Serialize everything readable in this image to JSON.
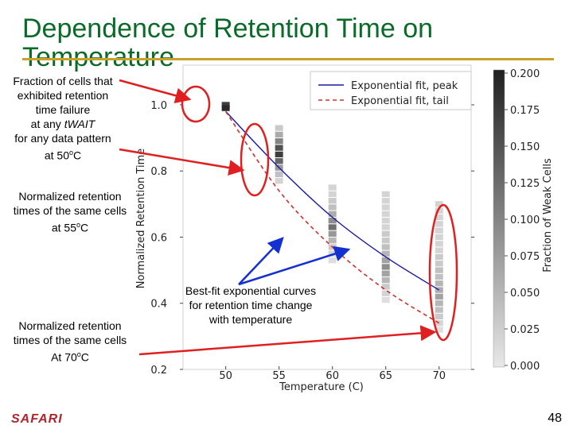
{
  "slide": {
    "title": "Dependence of Retention Time on Temperature",
    "logo": "SAFARI",
    "page_number": "48"
  },
  "annotations": {
    "fraction": {
      "line1": "Fraction of cells that",
      "line2": "exhibited retention",
      "line3": "time failure",
      "line4_pre": "at any ",
      "line4_em": "tWAIT",
      "line5": "for any data pattern",
      "line6_pre": "at 50",
      "line6_sup": "o",
      "line6_post": "C"
    },
    "at55": {
      "line1": "Normalized retention",
      "line2": "times of the same cells",
      "line3_pre": "at 55",
      "line3_sup": "o",
      "line3_post": "C"
    },
    "at70": {
      "line1": "Normalized retention",
      "line2": "times of the same cells",
      "line3_pre": "At 70",
      "line3_sup": "o",
      "line3_post": "C"
    },
    "bestfit": {
      "line1": "Best-fit exponential curves",
      "line2": "for retention time change",
      "line3": "with temperature"
    }
  },
  "chart_data": {
    "type": "heatmap",
    "xlabel": "Temperature (C)",
    "ylabel": "Normalized Retention Time",
    "xticks": [
      50,
      55,
      60,
      65,
      70
    ],
    "yticks": [
      0.2,
      0.4,
      0.6,
      0.8,
      1.0
    ],
    "xlim": [
      46,
      73
    ],
    "ylim": [
      0.2,
      1.12
    ],
    "legend_placement": "top-right",
    "series": [
      {
        "name": "Exponential fit, peak",
        "style": "solid",
        "color": "#1a1aa0",
        "x": [
          50,
          55,
          60,
          65,
          70
        ],
        "y": [
          0.98,
          0.81,
          0.66,
          0.54,
          0.44
        ]
      },
      {
        "name": "Exponential fit, tail",
        "style": "dashed",
        "color": "#d03030",
        "x": [
          50,
          55,
          60,
          65,
          70
        ],
        "y": [
          0.98,
          0.74,
          0.57,
          0.44,
          0.34
        ]
      }
    ],
    "heat_columns": [
      {
        "x": 50,
        "cells": [
          {
            "y": 1.0,
            "v": 0.17
          },
          {
            "y": 0.99,
            "v": 0.19
          }
        ]
      },
      {
        "x": 55,
        "cells": [
          {
            "y": 0.93,
            "v": 0.03
          },
          {
            "y": 0.91,
            "v": 0.06
          },
          {
            "y": 0.89,
            "v": 0.1
          },
          {
            "y": 0.87,
            "v": 0.15
          },
          {
            "y": 0.85,
            "v": 0.17
          },
          {
            "y": 0.83,
            "v": 0.13
          },
          {
            "y": 0.81,
            "v": 0.08
          },
          {
            "y": 0.79,
            "v": 0.04
          },
          {
            "y": 0.77,
            "v": 0.02
          }
        ]
      },
      {
        "x": 60,
        "cells": [
          {
            "y": 0.75,
            "v": 0.02
          },
          {
            "y": 0.73,
            "v": 0.02
          },
          {
            "y": 0.71,
            "v": 0.03
          },
          {
            "y": 0.69,
            "v": 0.04
          },
          {
            "y": 0.67,
            "v": 0.06
          },
          {
            "y": 0.65,
            "v": 0.09
          },
          {
            "y": 0.63,
            "v": 0.12
          },
          {
            "y": 0.61,
            "v": 0.08
          },
          {
            "y": 0.59,
            "v": 0.05
          },
          {
            "y": 0.57,
            "v": 0.03
          },
          {
            "y": 0.55,
            "v": 0.02
          },
          {
            "y": 0.53,
            "v": 0.01
          }
        ]
      },
      {
        "x": 65,
        "cells": [
          {
            "y": 0.73,
            "v": 0.02
          },
          {
            "y": 0.71,
            "v": 0.02
          },
          {
            "y": 0.69,
            "v": 0.02
          },
          {
            "y": 0.67,
            "v": 0.02
          },
          {
            "y": 0.65,
            "v": 0.02
          },
          {
            "y": 0.63,
            "v": 0.02
          },
          {
            "y": 0.61,
            "v": 0.03
          },
          {
            "y": 0.59,
            "v": 0.03
          },
          {
            "y": 0.57,
            "v": 0.04
          },
          {
            "y": 0.55,
            "v": 0.05
          },
          {
            "y": 0.53,
            "v": 0.07
          },
          {
            "y": 0.51,
            "v": 0.09
          },
          {
            "y": 0.49,
            "v": 0.07
          },
          {
            "y": 0.47,
            "v": 0.05
          },
          {
            "y": 0.45,
            "v": 0.03
          },
          {
            "y": 0.43,
            "v": 0.02
          },
          {
            "y": 0.41,
            "v": 0.01
          }
        ]
      },
      {
        "x": 70,
        "cells": [
          {
            "y": 0.7,
            "v": 0.02
          },
          {
            "y": 0.68,
            "v": 0.02
          },
          {
            "y": 0.66,
            "v": 0.02
          },
          {
            "y": 0.64,
            "v": 0.02
          },
          {
            "y": 0.62,
            "v": 0.02
          },
          {
            "y": 0.6,
            "v": 0.02
          },
          {
            "y": 0.58,
            "v": 0.02
          },
          {
            "y": 0.56,
            "v": 0.02
          },
          {
            "y": 0.54,
            "v": 0.03
          },
          {
            "y": 0.52,
            "v": 0.03
          },
          {
            "y": 0.5,
            "v": 0.04
          },
          {
            "y": 0.48,
            "v": 0.04
          },
          {
            "y": 0.46,
            "v": 0.05
          },
          {
            "y": 0.44,
            "v": 0.06
          },
          {
            "y": 0.42,
            "v": 0.07
          },
          {
            "y": 0.4,
            "v": 0.05
          },
          {
            "y": 0.38,
            "v": 0.04
          },
          {
            "y": 0.36,
            "v": 0.03
          },
          {
            "y": 0.34,
            "v": 0.02
          },
          {
            "y": 0.32,
            "v": 0.01
          }
        ]
      }
    ],
    "colorbar": {
      "label": "Fraction of Weak Cells",
      "ticks": [
        "0.200",
        "0.175",
        "0.150",
        "0.125",
        "0.100",
        "0.075",
        "0.050",
        "0.025",
        "0.000"
      ],
      "range": [
        0,
        0.2
      ],
      "cmap_light": "#e8e8e8",
      "cmap_dark": "#202020"
    },
    "highlight_color": "#e02020"
  }
}
